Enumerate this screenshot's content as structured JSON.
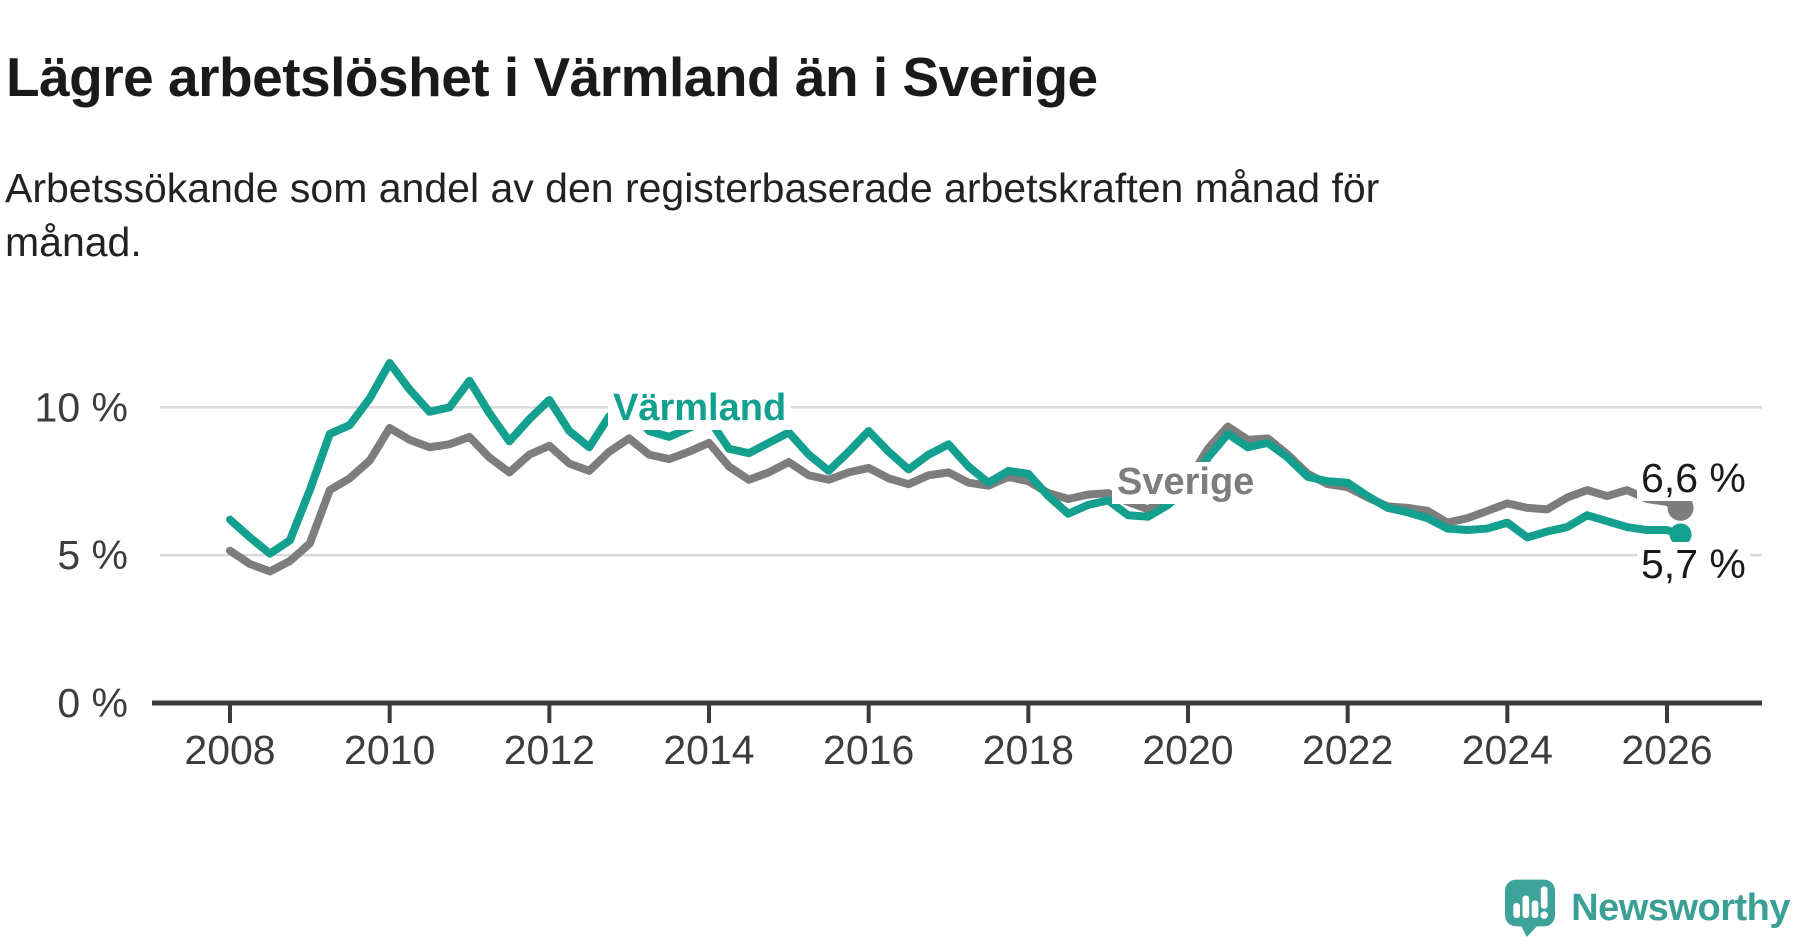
{
  "title": "Lägre arbetslöshet i Värmland än i Sverige",
  "subtitle": "Arbetssökande som andel av den registerbaserade arbetskraften månad för månad.",
  "branding": {
    "logo_text": "Newsworthy",
    "logo_icon": "bar-chart-speech-bubble-icon",
    "logo_color": "#3aa096"
  },
  "colors": {
    "varmland": "#13a08f",
    "sverige": "#7d7d7d",
    "grid": "#d9d9d9",
    "axis": "#3b3b3b",
    "tick_text": "#3d3d3d",
    "label_text": "#1a1a1a",
    "background": "#ffffff"
  },
  "chart_data": {
    "type": "line",
    "title": "Lägre arbetslöshet i Värmland än i Sverige",
    "xlabel": "",
    "ylabel": "",
    "x_unit": "year (monthly share of registered labour force)",
    "xlim": [
      2007.1,
      2027.2
    ],
    "ylim": [
      0,
      12.6
    ],
    "grid": "horizontal",
    "legend_position": "inline-labels",
    "x_ticks": [
      2008,
      2010,
      2012,
      2014,
      2016,
      2018,
      2020,
      2022,
      2024,
      2026
    ],
    "y_ticks": [
      {
        "value": 0,
        "label": "0 %"
      },
      {
        "value": 5,
        "label": "5 %"
      },
      {
        "value": 10,
        "label": "10 %"
      }
    ],
    "series": [
      {
        "name": "Värmland",
        "color": "#13a08f",
        "end_label": "5,7 %",
        "end_value": 5.7,
        "x": [
          2008.0,
          2008.25,
          2008.5,
          2008.75,
          2009.0,
          2009.25,
          2009.5,
          2009.75,
          2010.0,
          2010.25,
          2010.5,
          2010.75,
          2011.0,
          2011.25,
          2011.5,
          2011.75,
          2012.0,
          2012.25,
          2012.5,
          2012.75,
          2013.0,
          2013.25,
          2013.5,
          2013.75,
          2014.0,
          2014.25,
          2014.5,
          2014.75,
          2015.0,
          2015.25,
          2015.5,
          2015.75,
          2016.0,
          2016.25,
          2016.5,
          2016.75,
          2017.0,
          2017.25,
          2017.5,
          2017.75,
          2018.0,
          2018.25,
          2018.5,
          2018.75,
          2019.0,
          2019.25,
          2019.5,
          2019.75,
          2020.0,
          2020.25,
          2020.5,
          2020.75,
          2021.0,
          2021.25,
          2021.5,
          2021.75,
          2022.0,
          2022.25,
          2022.5,
          2022.75,
          2023.0,
          2023.25,
          2023.5,
          2023.75,
          2024.0,
          2024.25,
          2024.5,
          2024.75,
          2025.0,
          2025.25,
          2025.5,
          2025.75,
          2026.0,
          2026.17
        ],
        "values": [
          6.2,
          5.6,
          5.05,
          5.5,
          7.2,
          9.1,
          9.4,
          10.3,
          11.5,
          10.6,
          9.85,
          10.0,
          10.9,
          9.8,
          8.85,
          9.6,
          10.25,
          9.2,
          8.65,
          9.7,
          9.95,
          9.2,
          9.0,
          9.3,
          9.6,
          8.6,
          8.45,
          8.8,
          9.15,
          8.4,
          7.85,
          8.5,
          9.2,
          8.5,
          7.9,
          8.4,
          8.75,
          8.0,
          7.45,
          7.85,
          7.75,
          7.0,
          6.4,
          6.7,
          6.85,
          6.35,
          6.3,
          6.7,
          7.3,
          8.3,
          9.1,
          8.65,
          8.8,
          8.3,
          7.65,
          7.5,
          7.45,
          7.0,
          6.6,
          6.45,
          6.25,
          5.9,
          5.85,
          5.9,
          6.1,
          5.6,
          5.8,
          5.95,
          6.35,
          6.15,
          5.95,
          5.85,
          5.85,
          5.7
        ]
      },
      {
        "name": "Sverige",
        "color": "#7d7d7d",
        "end_label": "6,6 %",
        "end_value": 6.6,
        "x": [
          2008.0,
          2008.25,
          2008.5,
          2008.75,
          2009.0,
          2009.25,
          2009.5,
          2009.75,
          2010.0,
          2010.25,
          2010.5,
          2010.75,
          2011.0,
          2011.25,
          2011.5,
          2011.75,
          2012.0,
          2012.25,
          2012.5,
          2012.75,
          2013.0,
          2013.25,
          2013.5,
          2013.75,
          2014.0,
          2014.25,
          2014.5,
          2014.75,
          2015.0,
          2015.25,
          2015.5,
          2015.75,
          2016.0,
          2016.25,
          2016.5,
          2016.75,
          2017.0,
          2017.25,
          2017.5,
          2017.75,
          2018.0,
          2018.25,
          2018.5,
          2018.75,
          2019.0,
          2019.25,
          2019.5,
          2019.75,
          2020.0,
          2020.25,
          2020.5,
          2020.75,
          2021.0,
          2021.25,
          2021.5,
          2021.75,
          2022.0,
          2022.25,
          2022.5,
          2022.75,
          2023.0,
          2023.25,
          2023.5,
          2023.75,
          2024.0,
          2024.25,
          2024.5,
          2024.75,
          2025.0,
          2025.25,
          2025.5,
          2025.75,
          2026.0,
          2026.17
        ],
        "values": [
          5.15,
          4.7,
          4.45,
          4.8,
          5.4,
          7.2,
          7.6,
          8.2,
          9.3,
          8.9,
          8.65,
          8.75,
          9.0,
          8.3,
          7.8,
          8.4,
          8.7,
          8.1,
          7.85,
          8.5,
          8.95,
          8.4,
          8.25,
          8.5,
          8.8,
          8.0,
          7.55,
          7.8,
          8.15,
          7.7,
          7.55,
          7.8,
          7.95,
          7.6,
          7.4,
          7.7,
          7.8,
          7.45,
          7.35,
          7.65,
          7.5,
          7.1,
          6.9,
          7.05,
          7.1,
          6.8,
          6.55,
          6.9,
          7.5,
          8.6,
          9.35,
          8.9,
          8.95,
          8.4,
          7.75,
          7.4,
          7.3,
          6.95,
          6.65,
          6.6,
          6.5,
          6.1,
          6.25,
          6.5,
          6.75,
          6.6,
          6.55,
          6.95,
          7.2,
          7.0,
          7.2,
          6.9,
          6.8,
          6.6
        ]
      }
    ]
  }
}
